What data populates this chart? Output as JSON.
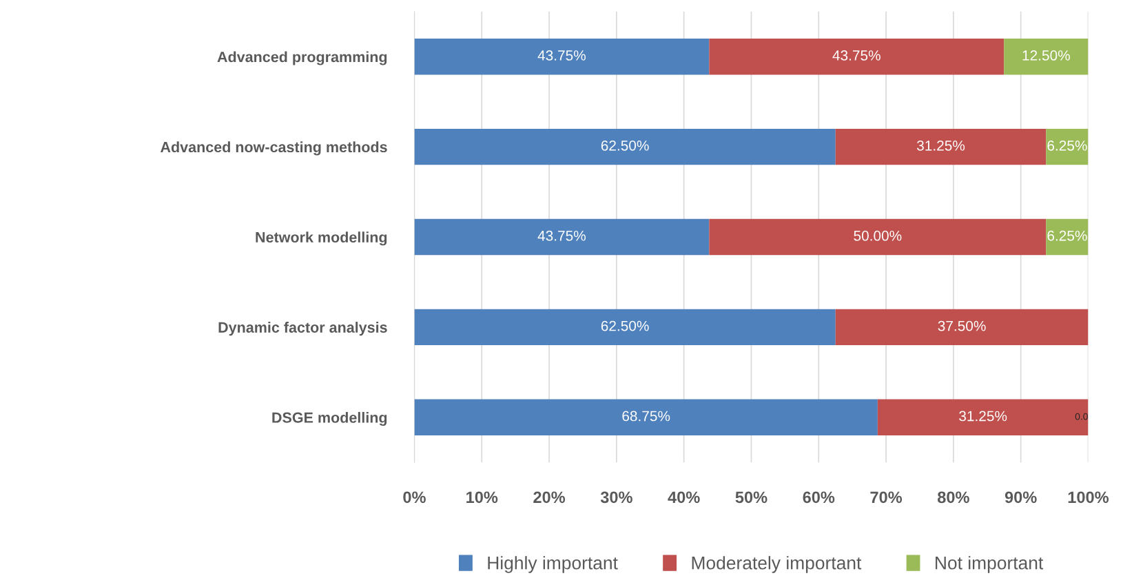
{
  "chart_data": {
    "type": "bar",
    "orientation": "horizontal",
    "stacked": true,
    "categories": [
      "Advanced programming",
      "Advanced now-casting methods",
      "Network modelling",
      "Dynamic factor analysis",
      "DSGE modelling"
    ],
    "series": [
      {
        "name": "Highly important",
        "color": "#4f81bd",
        "values": [
          43.75,
          62.5,
          43.75,
          62.5,
          68.75
        ],
        "value_labels": [
          "43.75%",
          "62.50%",
          "43.75%",
          "62.50%",
          "68.75%"
        ]
      },
      {
        "name": "Moderately important",
        "color": "#c0504d",
        "values": [
          43.75,
          31.25,
          50.0,
          37.5,
          31.25
        ],
        "value_labels": [
          "43.75%",
          "31.25%",
          "50.00%",
          "37.50%",
          "31.25%"
        ]
      },
      {
        "name": "Not important",
        "color": "#9bbb59",
        "values": [
          12.5,
          6.25,
          6.25,
          0,
          0
        ],
        "value_labels": [
          "12.50%",
          "6.25%",
          "6.25%",
          null,
          "0.0"
        ]
      }
    ],
    "xlim": [
      0,
      100
    ],
    "xticks": [
      {
        "value": 0,
        "label": "0%"
      },
      {
        "value": 10,
        "label": "10%"
      },
      {
        "value": 20,
        "label": "20%"
      },
      {
        "value": 30,
        "label": "30%"
      },
      {
        "value": 40,
        "label": "40%"
      },
      {
        "value": 50,
        "label": "50%"
      },
      {
        "value": 60,
        "label": "60%"
      },
      {
        "value": 70,
        "label": "70%"
      },
      {
        "value": 80,
        "label": "80%"
      },
      {
        "value": 90,
        "label": "90%"
      },
      {
        "value": 100,
        "label": "100%"
      }
    ],
    "grid": "x",
    "legend": "bottom"
  }
}
